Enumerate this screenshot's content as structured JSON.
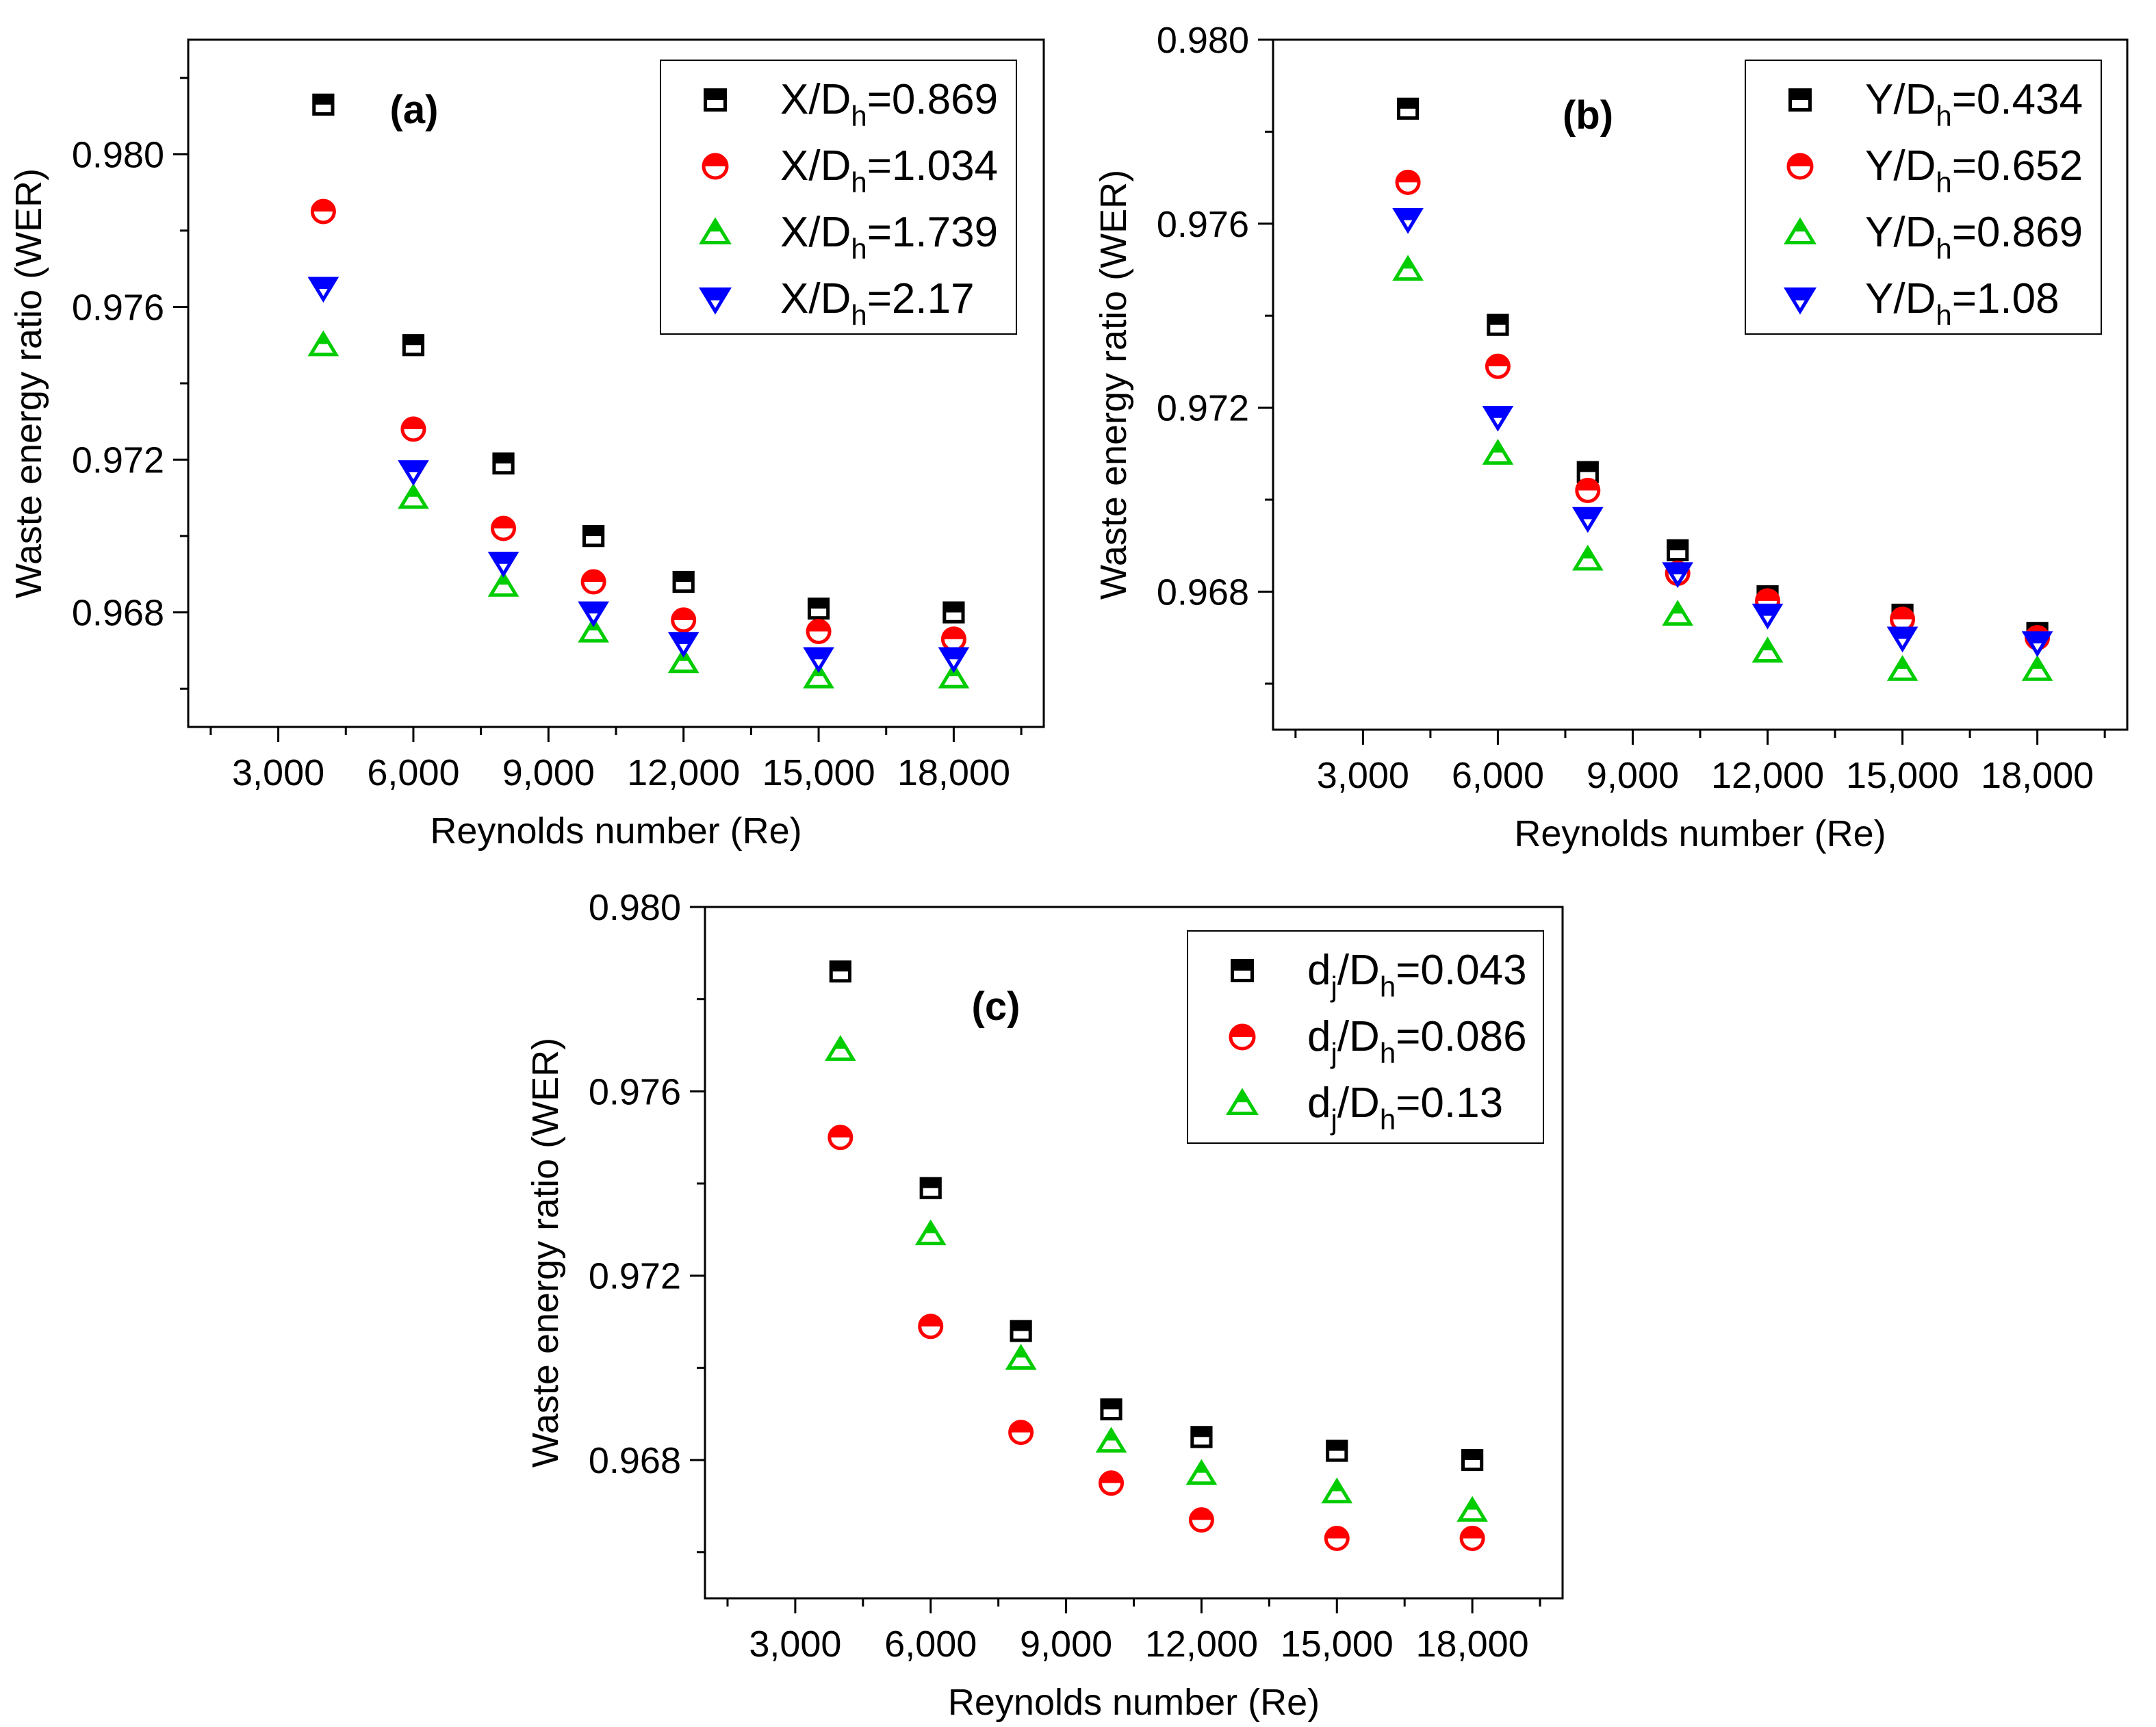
{
  "chart_data": [
    {
      "type": "scatter",
      "panel_label": "(a)",
      "xlabel": "Reynolds number (Re)",
      "ylabel": "Waste energy ratio (WER)",
      "xlim": [
        1000,
        20000
      ],
      "ylim": [
        0.965,
        0.983
      ],
      "xticks": [
        3000,
        6000,
        9000,
        12000,
        15000,
        18000
      ],
      "xtick_labels": [
        "3,000",
        "6,000",
        "9,000",
        "12,000",
        "15,000",
        "18,000"
      ],
      "yticks": [
        0.968,
        0.972,
        0.976,
        0.98
      ],
      "ytick_labels": [
        "0.968",
        "0.972",
        "0.976",
        "0.980"
      ],
      "legend_position": "top-right",
      "x": [
        4000,
        6000,
        8000,
        10000,
        12000,
        15000,
        18000
      ],
      "series": [
        {
          "label_prefix": "X/D",
          "label_sub": "h",
          "label_suffix": "=0.869",
          "marker": "square-half",
          "color": "#000000",
          "values": [
            0.9813,
            0.975,
            0.9719,
            0.97,
            0.9688,
            0.9681,
            0.968
          ]
        },
        {
          "label_prefix": "X/D",
          "label_sub": "h",
          "label_suffix": "=1.034",
          "marker": "circle-half",
          "color": "#ff0000",
          "values": [
            0.9785,
            0.9728,
            0.9702,
            0.9688,
            0.9678,
            0.9675,
            0.9673
          ]
        },
        {
          "label_prefix": "X/D",
          "label_sub": "h",
          "label_suffix": "=1.739",
          "marker": "triangle-up-half",
          "color": "#00cc00",
          "values": [
            0.975,
            0.971,
            0.9687,
            0.9675,
            0.9667,
            0.9663,
            0.9663
          ]
        },
        {
          "label_prefix": "X/D",
          "label_sub": "h",
          "label_suffix": "=2.17",
          "marker": "triangle-down-half",
          "color": "#0000ff",
          "values": [
            0.9765,
            0.9717,
            0.9693,
            0.968,
            0.9672,
            0.9668,
            0.9668
          ]
        }
      ]
    },
    {
      "type": "scatter",
      "panel_label": "(b)",
      "xlabel": "Reynolds number (Re)",
      "ylabel": "Waste energy ratio (WER)",
      "xlim": [
        1000,
        20000
      ],
      "ylim": [
        0.965,
        0.98
      ],
      "xticks": [
        3000,
        6000,
        9000,
        12000,
        15000,
        18000
      ],
      "xtick_labels": [
        "3,000",
        "6,000",
        "9,000",
        "12,000",
        "15,000",
        "18,000"
      ],
      "yticks": [
        0.968,
        0.972,
        0.976,
        0.98
      ],
      "ytick_labels": [
        "0.968",
        "0.972",
        "0.976",
        "0.980"
      ],
      "legend_position": "top-right",
      "x": [
        4000,
        6000,
        8000,
        10000,
        12000,
        15000,
        18000
      ],
      "series": [
        {
          "label_prefix": "Y/D",
          "label_sub": "h",
          "label_suffix": "=0.434",
          "marker": "square-half",
          "color": "#000000",
          "values": [
            0.9785,
            0.9738,
            0.9706,
            0.9689,
            0.9679,
            0.9675,
            0.9671
          ]
        },
        {
          "label_prefix": "Y/D",
          "label_sub": "h",
          "label_suffix": "=0.652",
          "marker": "circle-half",
          "color": "#ff0000",
          "values": [
            0.9769,
            0.9729,
            0.9702,
            0.9684,
            0.9678,
            0.9674,
            0.967
          ]
        },
        {
          "label_prefix": "Y/D",
          "label_sub": "h",
          "label_suffix": "=0.869",
          "marker": "triangle-up-half",
          "color": "#00cc00",
          "values": [
            0.975,
            0.971,
            0.9687,
            0.9675,
            0.9667,
            0.9663,
            0.9663
          ]
        },
        {
          "label_prefix": "Y/D",
          "label_sub": "h",
          "label_suffix": "=1.08",
          "marker": "triangle-down-half",
          "color": "#0000ff",
          "values": [
            0.9761,
            0.9718,
            0.9696,
            0.9684,
            0.9675,
            0.967,
            0.9669
          ]
        }
      ]
    },
    {
      "type": "scatter",
      "panel_label": "(c)",
      "xlabel": "Reynolds number (Re)",
      "ylabel": "Waste energy ratio (WER)",
      "xlim": [
        1000,
        20000
      ],
      "ylim": [
        0.965,
        0.98
      ],
      "xticks": [
        3000,
        6000,
        9000,
        12000,
        15000,
        18000
      ],
      "xtick_labels": [
        "3,000",
        "6,000",
        "9,000",
        "12,000",
        "15,000",
        "18,000"
      ],
      "yticks": [
        0.968,
        0.972,
        0.976,
        0.98
      ],
      "ytick_labels": [
        "0.968",
        "0.972",
        "0.976",
        "0.980"
      ],
      "legend_position": "top-right",
      "x": [
        4000,
        6000,
        8000,
        10000,
        12000,
        15000,
        18000
      ],
      "series": [
        {
          "label_prefix": "d",
          "label_sub1": "j",
          "label_mid": "/D",
          "label_sub": "h",
          "label_suffix": "=0.043",
          "marker": "square-half",
          "color": "#000000",
          "values": [
            0.9786,
            0.9739,
            0.9708,
            0.9691,
            0.9685,
            0.9682,
            0.968
          ]
        },
        {
          "label_prefix": "d",
          "label_sub1": "j",
          "label_mid": "/D",
          "label_sub": "h",
          "label_suffix": "=0.086",
          "marker": "circle-half",
          "color": "#ff0000",
          "values": [
            0.975,
            0.9709,
            0.9686,
            0.9675,
            0.9667,
            0.9663,
            0.9663
          ]
        },
        {
          "label_prefix": "d",
          "label_sub1": "j",
          "label_mid": "/D",
          "label_sub": "h",
          "label_suffix": "=0.13",
          "marker": "triangle-up-half",
          "color": "#00cc00",
          "values": [
            0.9769,
            0.9729,
            0.9702,
            0.9684,
            0.9677,
            0.9673,
            0.9669
          ]
        }
      ]
    }
  ]
}
